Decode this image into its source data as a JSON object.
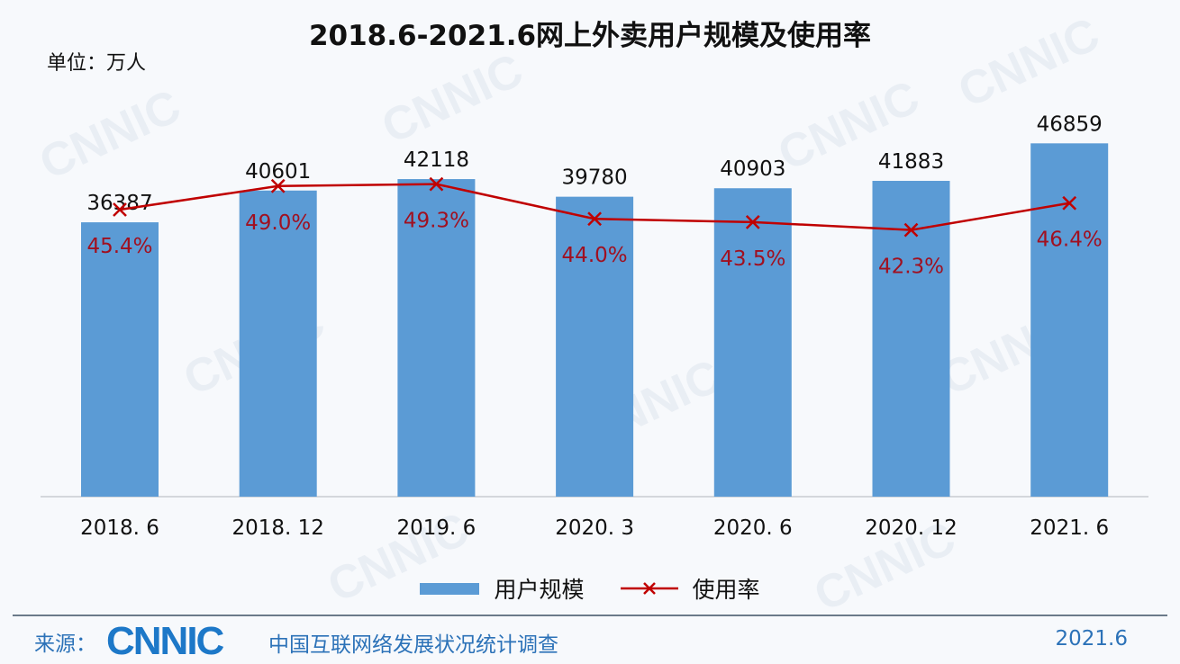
{
  "chart_data": {
    "type": "bar+line",
    "title": "2018.6-2021.6网上外卖用户规模及使用率",
    "unit_label": "单位：万人",
    "categories": [
      "2018. 6",
      "2018. 12",
      "2019. 6",
      "2020. 3",
      "2020. 6",
      "2020. 12",
      "2021. 6"
    ],
    "series": [
      {
        "name": "用户规模",
        "type": "bar",
        "color": "#5b9bd5",
        "values": [
          36387,
          40601,
          42118,
          39780,
          40903,
          41883,
          46859
        ],
        "labels": [
          "36387",
          "40601",
          "42118",
          "39780",
          "40903",
          "41883",
          "46859"
        ]
      },
      {
        "name": "使用率",
        "type": "line",
        "marker": "x",
        "color": "#c00000",
        "values": [
          45.4,
          49.0,
          49.3,
          44.0,
          43.5,
          42.3,
          46.4
        ],
        "labels": [
          "45.4%",
          "49.0%",
          "49.3%",
          "44.0%",
          "43.5%",
          "42.3%",
          "46.4%"
        ]
      }
    ],
    "ylim": [
      0,
      50000
    ],
    "grid": false,
    "legend": "bottom"
  },
  "footer": {
    "source_label": "来源：",
    "logo": "CNNIC",
    "org": "中国互联网络发展状况统计调查",
    "date": "2021.6"
  },
  "watermark": "CNNIC"
}
